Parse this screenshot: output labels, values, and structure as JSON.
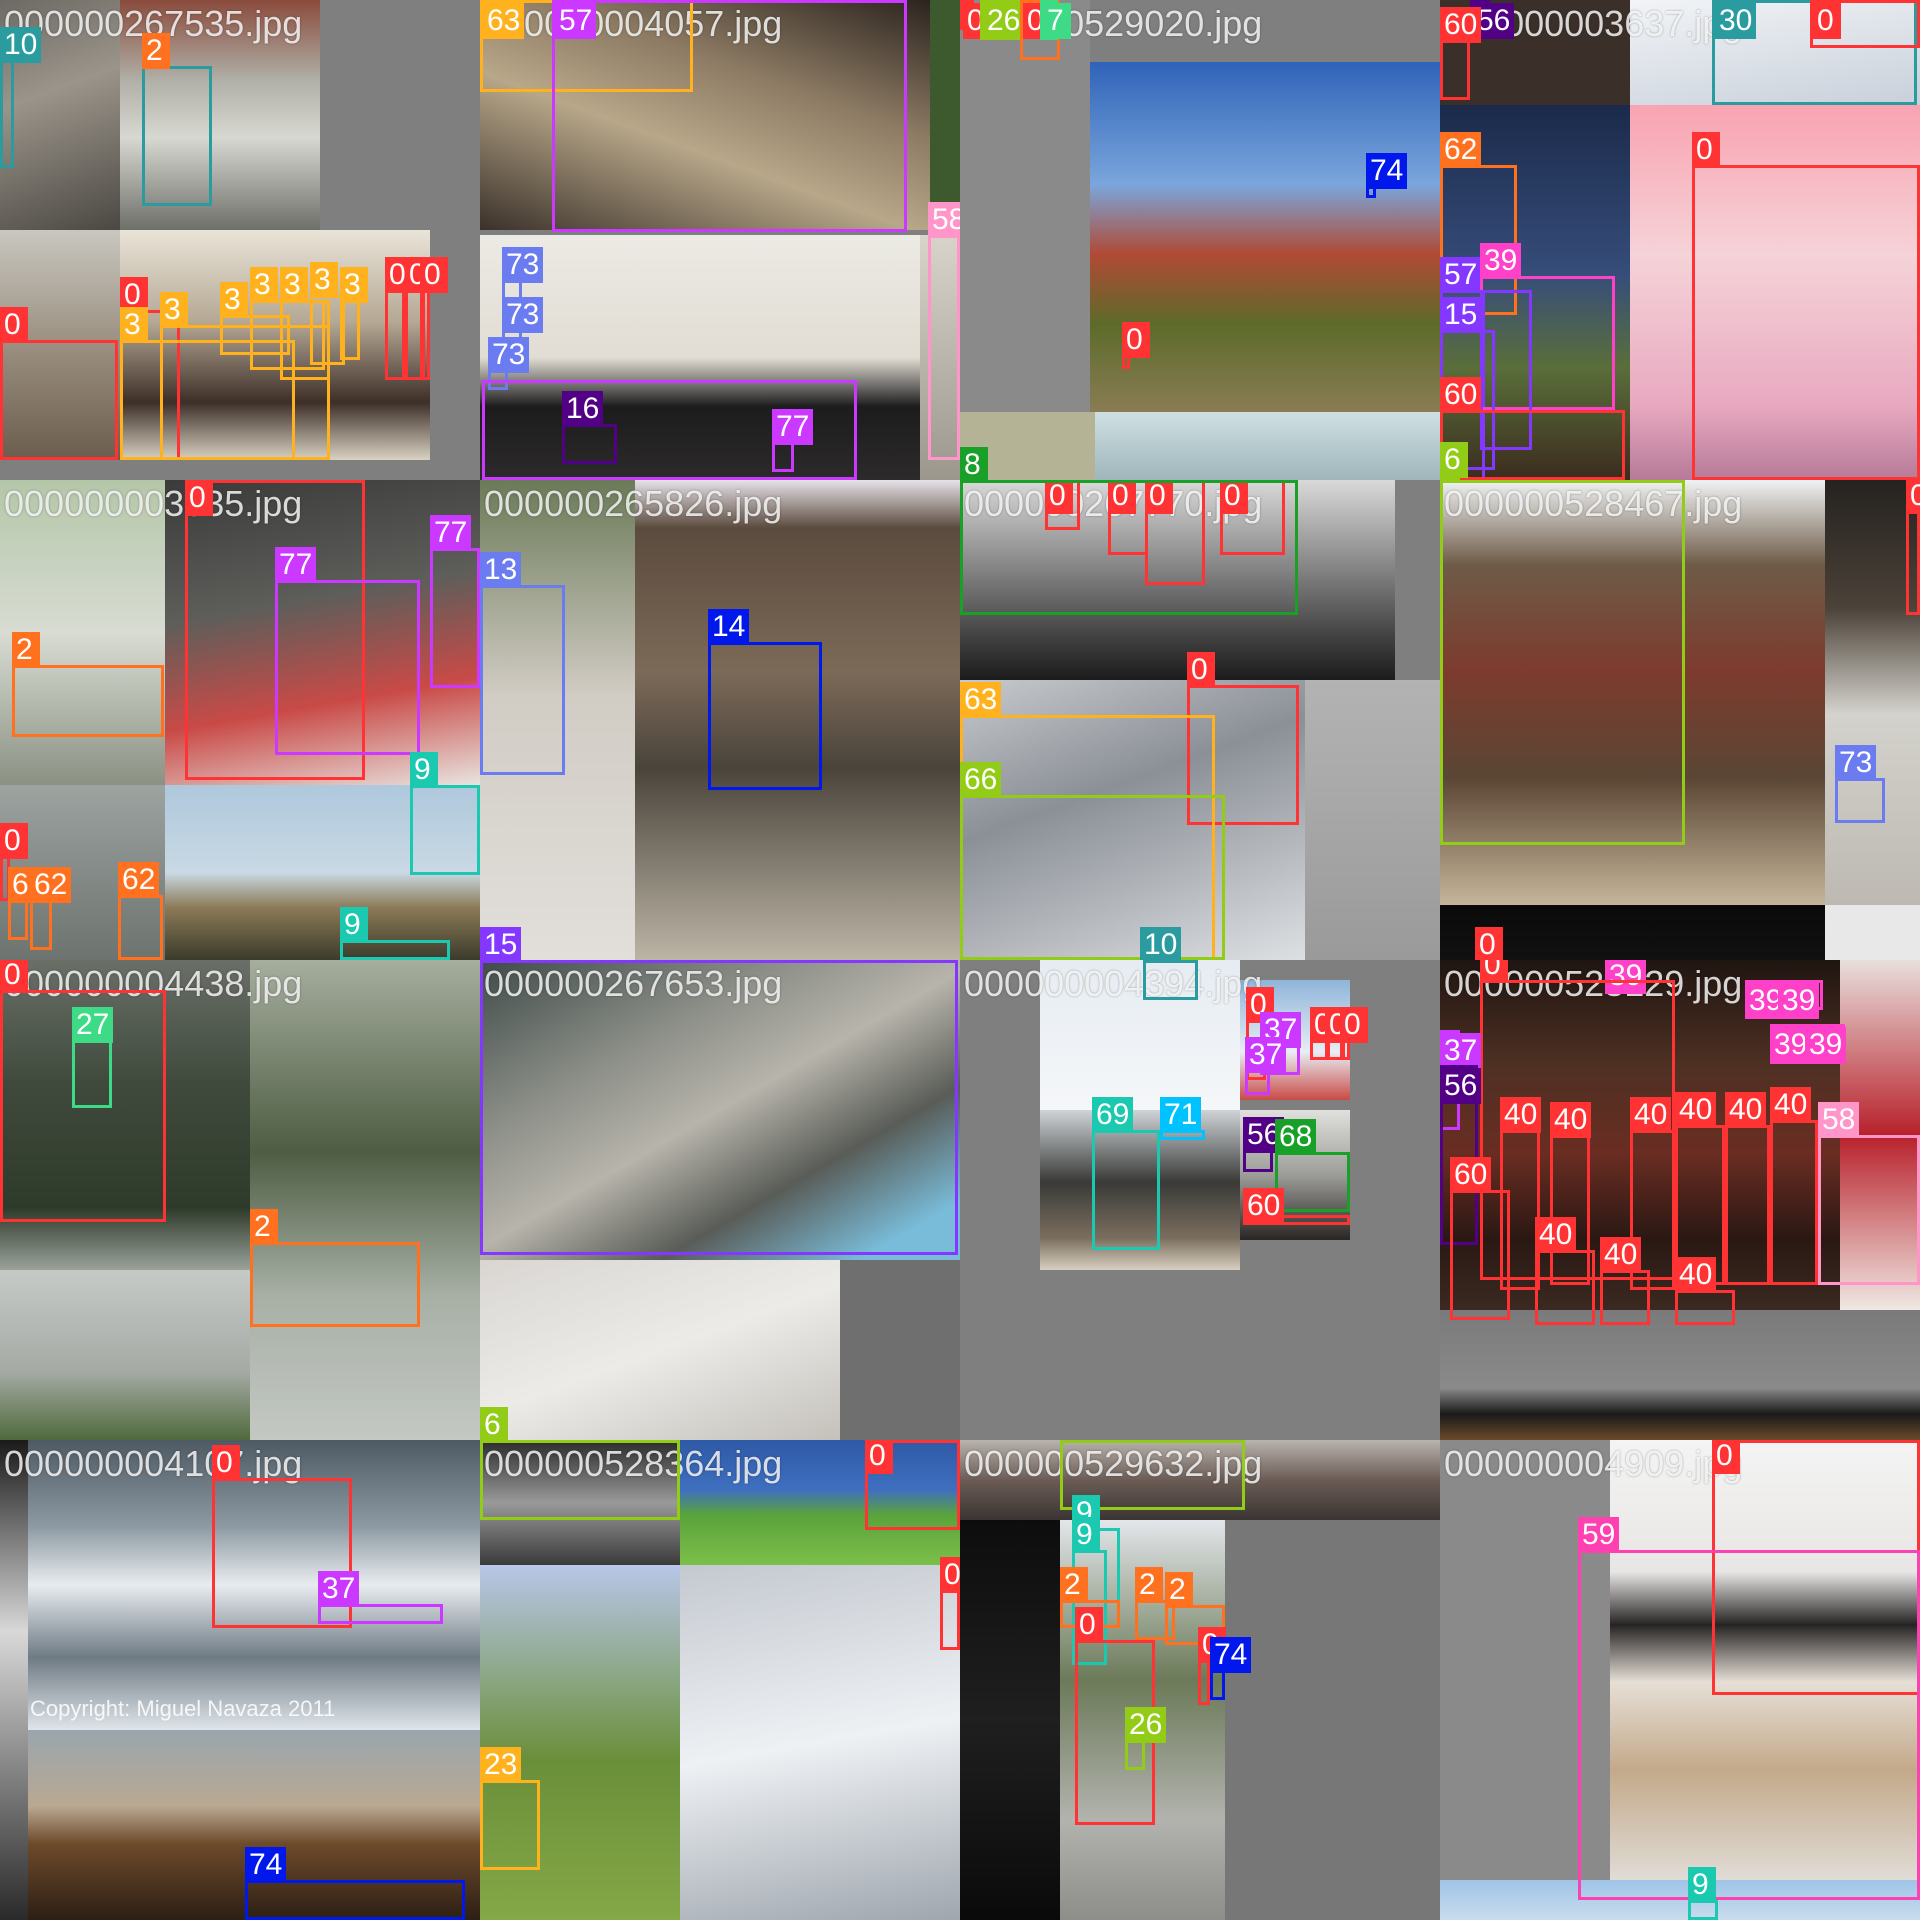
{
  "class_colors": {
    "0": "#ff3838",
    "2": "#ff701f",
    "3": "#ffb21d",
    "6": "#92cc17",
    "7": "#3ddb86",
    "8": "#48f90a",
    "9": "#1ac9b0",
    "10": "#2a9ca0",
    "13": "#6b7bf0",
    "14": "#0018ec",
    "15": "#8438ff",
    "16": "#520085",
    "23": "#ff9d37",
    "26": "#92cc17",
    "27": "#3ddb86",
    "30": "#2a9ca0",
    "37": "#cb38ff",
    "39": "#ff40c8",
    "40": "#ff3838",
    "56": "#520085",
    "57": "#8438ff",
    "58": "#ff95c8",
    "59": "#ff40b0",
    "60": "#ff3838",
    "62": "#ff701f",
    "63": "#ffb21d",
    "66": "#92cc17",
    "68": "#18a028",
    "69": "#1ac9b0",
    "71": "#00c2ff",
    "73": "#6b7bf0",
    "74": "#0018ec",
    "77": "#cb38ff"
  },
  "tiles": [
    {
      "filename": "000000267535.jpg",
      "labels": [
        "10",
        "2",
        "0",
        "2",
        "0",
        "0",
        "0",
        "2",
        "3",
        "3",
        "3",
        "3",
        "3",
        "3",
        "3",
        "0",
        "0",
        "0"
      ]
    },
    {
      "filename": "000000004057.jpg",
      "labels": [
        "63",
        "57",
        "58",
        "73",
        "73",
        "73",
        "16",
        "77"
      ]
    },
    {
      "filename": "000000529020.jpg",
      "labels": [
        "0",
        "26",
        "0",
        "7",
        "74",
        "0",
        "8",
        "0",
        "0",
        "0",
        "0"
      ]
    },
    {
      "filename": "000000003637.jpg",
      "labels": [
        "56",
        "60",
        "30",
        "0",
        "62",
        "0",
        "57",
        "39",
        "15",
        "60",
        "6"
      ]
    },
    {
      "filename": "000000003535.jpg",
      "labels": [
        "0",
        "77",
        "77",
        "2",
        "9",
        "0",
        "62",
        "62",
        "62",
        "9"
      ]
    },
    {
      "filename": "000000265826.jpg",
      "labels": [
        "13",
        "14",
        "15"
      ]
    },
    {
      "filename": "000000267770.jpg",
      "labels": [
        "0",
        "0",
        "0",
        "0",
        "0",
        "63",
        "66",
        "10"
      ]
    },
    {
      "filename": "000000528467.jpg",
      "labels": [
        "0",
        "73",
        "0"
      ]
    },
    {
      "filename": "000000004438.jpg",
      "labels": [
        "0",
        "27",
        "2"
      ]
    },
    {
      "filename": "000000267653.jpg",
      "labels": [
        "15",
        "6"
      ]
    },
    {
      "filename": "000000004394.jpg",
      "labels": [
        "0",
        "37",
        "37",
        "0",
        "0",
        "0",
        "69",
        "71",
        "56",
        "68",
        "60"
      ]
    },
    {
      "filename": "000000528129.jpg",
      "labels": [
        "39",
        "0",
        "39",
        "39",
        "39",
        "39",
        "37",
        "56",
        "40",
        "40",
        "40",
        "40",
        "40",
        "40",
        "58",
        "60",
        "40",
        "40",
        "40"
      ]
    },
    {
      "filename": "000000004107.jpg",
      "labels": [
        "0",
        "37",
        "74"
      ],
      "watermark": "Copyright: Miguel Navaza 2011"
    },
    {
      "filename": "000000528364.jpg",
      "labels": [
        "0",
        "0",
        "23"
      ]
    },
    {
      "filename": "000000529632.jpg",
      "labels": [
        "6",
        "9",
        "9",
        "2",
        "2",
        "2",
        "0",
        "0",
        "74",
        "26"
      ]
    },
    {
      "filename": "000000004909.jpg",
      "labels": [
        "0",
        "59",
        "9"
      ]
    }
  ]
}
